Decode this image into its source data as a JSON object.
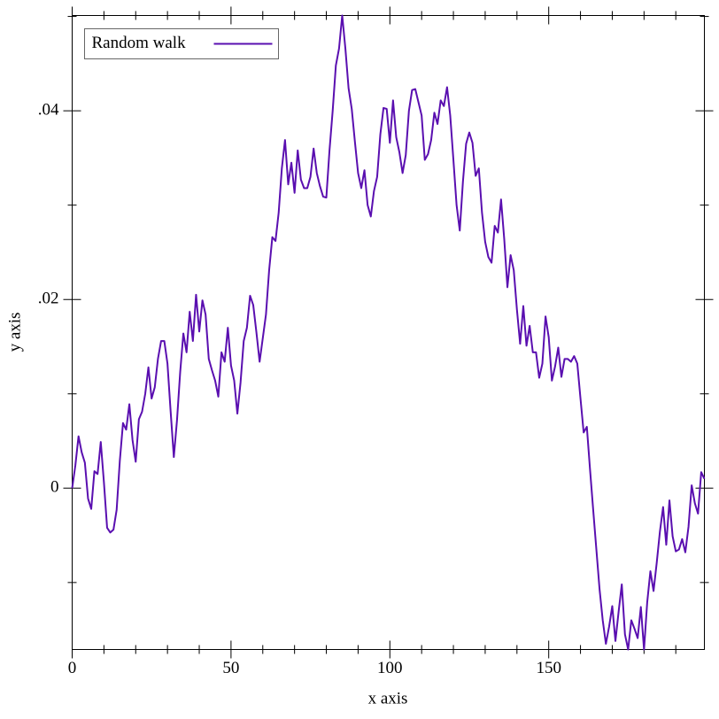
{
  "chart_data": {
    "type": "line",
    "x_label": "x axis",
    "y_label": "y axis",
    "x": [
      0,
      1,
      2,
      3,
      4,
      5,
      6,
      7,
      8,
      9,
      10,
      11,
      12,
      13,
      14,
      15,
      16,
      17,
      18,
      19,
      20,
      21,
      22,
      23,
      24,
      25,
      26,
      27,
      28,
      29,
      30,
      31,
      32,
      33,
      34,
      35,
      36,
      37,
      38,
      39,
      40,
      41,
      42,
      43,
      44,
      45,
      46,
      47,
      48,
      49,
      50,
      51,
      52,
      53,
      54,
      55,
      56,
      57,
      58,
      59,
      60,
      61,
      62,
      63,
      64,
      65,
      66,
      67,
      68,
      69,
      70,
      71,
      72,
      73,
      74,
      75,
      76,
      77,
      78,
      79,
      80,
      81,
      82,
      83,
      84,
      85,
      86,
      87,
      88,
      89,
      90,
      91,
      92,
      93,
      94,
      95,
      96,
      97,
      98,
      99,
      100,
      101,
      102,
      103,
      104,
      105,
      106,
      107,
      108,
      109,
      110,
      111,
      112,
      113,
      114,
      115,
      116,
      117,
      118,
      119,
      120,
      121,
      122,
      123,
      124,
      125,
      126,
      127,
      128,
      129,
      130,
      131,
      132,
      133,
      134,
      135,
      136,
      137,
      138,
      139,
      140,
      141,
      142,
      143,
      144,
      145,
      146,
      147,
      148,
      149,
      150,
      151,
      152,
      153,
      154,
      155,
      156,
      157,
      158,
      159,
      160,
      161,
      162,
      163,
      164,
      165,
      166,
      167,
      168,
      169,
      170,
      171,
      172,
      173,
      174,
      175,
      176,
      177,
      178,
      179,
      180,
      181,
      182,
      183,
      184,
      185,
      186,
      187,
      188,
      189,
      190,
      191,
      192,
      193,
      194,
      195,
      196,
      197,
      198,
      199
    ],
    "series": [
      {
        "name": "Random walk",
        "color": "#5a0fb0",
        "values": [
          0,
          0.0024,
          0.0055,
          0.0038,
          0.0027,
          -0.0011,
          -0.0022,
          0.0018,
          0.0015,
          0.0049,
          0.0006,
          -0.0042,
          -0.0047,
          -0.0044,
          -0.0023,
          0.0029,
          0.0069,
          0.0062,
          0.0089,
          0.0051,
          0.0028,
          0.0073,
          0.0081,
          0.01,
          0.0128,
          0.0095,
          0.0107,
          0.0137,
          0.0156,
          0.0156,
          0.0132,
          0.0081,
          0.0033,
          0.0072,
          0.0123,
          0.0164,
          0.0144,
          0.0187,
          0.0156,
          0.0205,
          0.0166,
          0.0199,
          0.0184,
          0.0137,
          0.0125,
          0.0114,
          0.0097,
          0.0144,
          0.0134,
          0.017,
          0.013,
          0.0114,
          0.0079,
          0.0112,
          0.0156,
          0.017,
          0.0204,
          0.0194,
          0.0165,
          0.0134,
          0.0159,
          0.0184,
          0.0231,
          0.0266,
          0.0262,
          0.0292,
          0.0339,
          0.0369,
          0.0322,
          0.0345,
          0.0313,
          0.0358,
          0.0327,
          0.0318,
          0.0318,
          0.033,
          0.036,
          0.0334,
          0.032,
          0.0309,
          0.0308,
          0.0358,
          0.04,
          0.0448,
          0.0466,
          0.0501,
          0.0466,
          0.0424,
          0.0402,
          0.0367,
          0.0334,
          0.0318,
          0.0337,
          0.03,
          0.0288,
          0.0315,
          0.033,
          0.0375,
          0.0403,
          0.0402,
          0.0366,
          0.0411,
          0.0372,
          0.0356,
          0.0334,
          0.0353,
          0.04,
          0.0422,
          0.0423,
          0.0409,
          0.0395,
          0.0348,
          0.0354,
          0.0369,
          0.0398,
          0.0386,
          0.0411,
          0.0405,
          0.0425,
          0.0395,
          0.0348,
          0.03,
          0.0273,
          0.0325,
          0.0365,
          0.0377,
          0.0366,
          0.0331,
          0.0339,
          0.0292,
          0.0261,
          0.0245,
          0.0239,
          0.0278,
          0.0271,
          0.0306,
          0.0264,
          0.0213,
          0.0247,
          0.0231,
          0.0189,
          0.0153,
          0.0193,
          0.0151,
          0.0172,
          0.0144,
          0.0144,
          0.0117,
          0.0132,
          0.0182,
          0.016,
          0.0114,
          0.0129,
          0.0149,
          0.0118,
          0.0137,
          0.0137,
          0.0134,
          0.014,
          0.0132,
          0.0095,
          0.0059,
          0.0065,
          0.002,
          -0.0023,
          -0.0065,
          -0.0107,
          -0.014,
          -0.0165,
          -0.0147,
          -0.0125,
          -0.0162,
          -0.0131,
          -0.0102,
          -0.0155,
          -0.0171,
          -0.014,
          -0.0149,
          -0.0159,
          -0.0126,
          -0.0171,
          -0.0121,
          -0.0088,
          -0.0109,
          -0.0079,
          -0.0046,
          -0.002,
          -0.006,
          -0.0013,
          -0.0051,
          -0.0067,
          -0.0065,
          -0.0054,
          -0.0068,
          -0.0041,
          0.0003,
          -0.0016,
          -0.0027,
          0.0017,
          0.001
        ]
      }
    ],
    "xlim": [
      0,
      199
    ],
    "ylim": [
      -0.0171,
      0.0501
    ],
    "xticks": [
      0,
      50,
      100,
      150
    ],
    "xminorticks": [
      10,
      20,
      30,
      40,
      60,
      70,
      80,
      90,
      110,
      120,
      130,
      140,
      160,
      170,
      180,
      190
    ],
    "yticks": [
      0,
      {
        "value": 0.02,
        "label": ".02"
      },
      {
        "value": 0.04,
        "label": ".04"
      }
    ],
    "yminorticks": [
      -0.01,
      0.01,
      0.03,
      0.05
    ],
    "legend": "top-left"
  }
}
